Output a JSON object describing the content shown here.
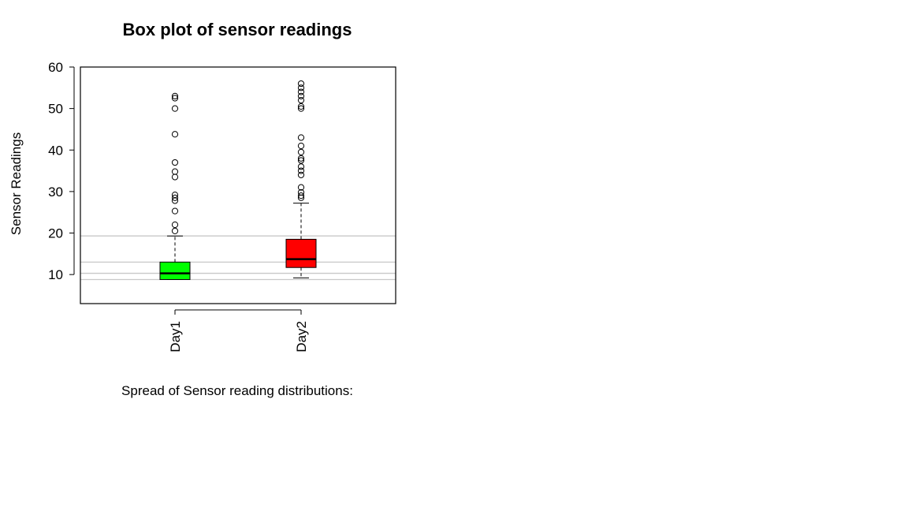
{
  "chart_data": {
    "type": "box",
    "title": "Box plot of sensor readings",
    "xlabel": "Spread of Sensor reading distributions:",
    "ylabel": "Sensor Readings",
    "ylim": [
      3,
      60
    ],
    "yticks": [
      10,
      20,
      30,
      40,
      50,
      60
    ],
    "categories": [
      "Day1",
      "Day2"
    ],
    "boxes": [
      {
        "name": "Day1",
        "color": "#00ff00",
        "whisker_low": 8.8,
        "q1": 8.8,
        "median": 10.3,
        "q3": 13.0,
        "whisker_high": 19.3,
        "outliers": [
          20.5,
          22.0,
          25.3,
          27.8,
          28.5,
          29.2,
          33.5,
          34.8,
          37.0,
          43.8,
          50.0,
          52.5,
          53.0
        ]
      },
      {
        "name": "Day2",
        "color": "#ff0000",
        "whisker_low": 9.2,
        "q1": 11.7,
        "median": 13.7,
        "q3": 18.5,
        "whisker_high": 27.2,
        "outliers": [
          28.5,
          29.0,
          29.8,
          31.0,
          34.0,
          35.0,
          36.0,
          37.5,
          38.0,
          39.5,
          41.0,
          43.0,
          50.0,
          50.5,
          52.0,
          53.0,
          54.0,
          55.0,
          56.0
        ]
      }
    ],
    "reference_lines": [
      8.8,
      10.3,
      13.0,
      19.3
    ],
    "reference_line_color": "#c8c8c8",
    "grid": false,
    "legend": "none"
  }
}
